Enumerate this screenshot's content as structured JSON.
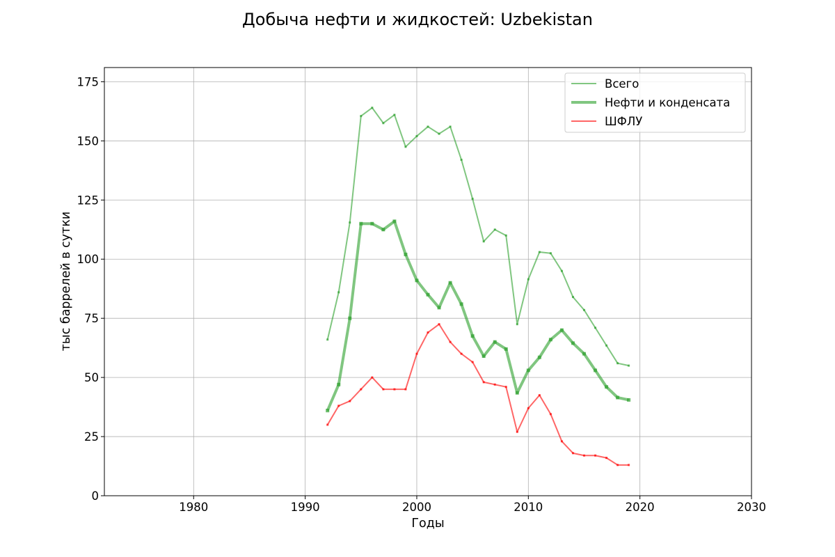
{
  "chart_data": {
    "type": "line",
    "title": "Добыча нефти и жидкостей: Uzbekistan",
    "xlabel": "Годы",
    "ylabel": "тыс баррелей в сутки",
    "xlim": [
      1972,
      2030
    ],
    "ylim": [
      0,
      181
    ],
    "xticks": [
      1980,
      1990,
      2000,
      2010,
      2020,
      2030
    ],
    "yticks": [
      0,
      25,
      50,
      75,
      100,
      125,
      150,
      175
    ],
    "grid": true,
    "legend_position": "top-right",
    "x": [
      1992,
      1993,
      1994,
      1995,
      1996,
      1997,
      1998,
      1999,
      2000,
      2001,
      2002,
      2003,
      2004,
      2005,
      2006,
      2007,
      2008,
      2009,
      2010,
      2011,
      2012,
      2013,
      2014,
      2015,
      2016,
      2017,
      2018,
      2019
    ],
    "series": [
      {
        "name": "Всего",
        "color": "#2ca02c",
        "style": "thin",
        "values": [
          66,
          86,
          115.5,
          160.5,
          164,
          157.5,
          161,
          147.5,
          152,
          156,
          153,
          156,
          142,
          125.5,
          107.5,
          112.5,
          110,
          72.5,
          91.5,
          103,
          102.5,
          95,
          84,
          78.5,
          71,
          63.5,
          56,
          55
        ]
      },
      {
        "name": "Нефти и конденсата",
        "color": "#2ca02c",
        "style": "thick",
        "values": [
          36,
          47,
          75,
          115,
          115,
          112.5,
          116,
          102,
          91,
          85,
          79.5,
          90,
          81,
          67.5,
          59,
          65,
          62,
          43.5,
          53,
          58.5,
          66,
          70,
          64.5,
          60,
          53,
          46,
          41.5,
          40.5
        ]
      },
      {
        "name": "ШФЛУ",
        "color": "#ff0000",
        "style": "thin",
        "values": [
          30,
          38,
          40,
          45,
          50,
          45,
          45,
          45,
          60,
          69,
          72.5,
          65,
          60,
          56.5,
          48,
          47,
          46,
          27,
          37,
          42.5,
          34.5,
          23,
          18,
          17,
          17,
          16,
          13,
          13
        ]
      }
    ]
  }
}
